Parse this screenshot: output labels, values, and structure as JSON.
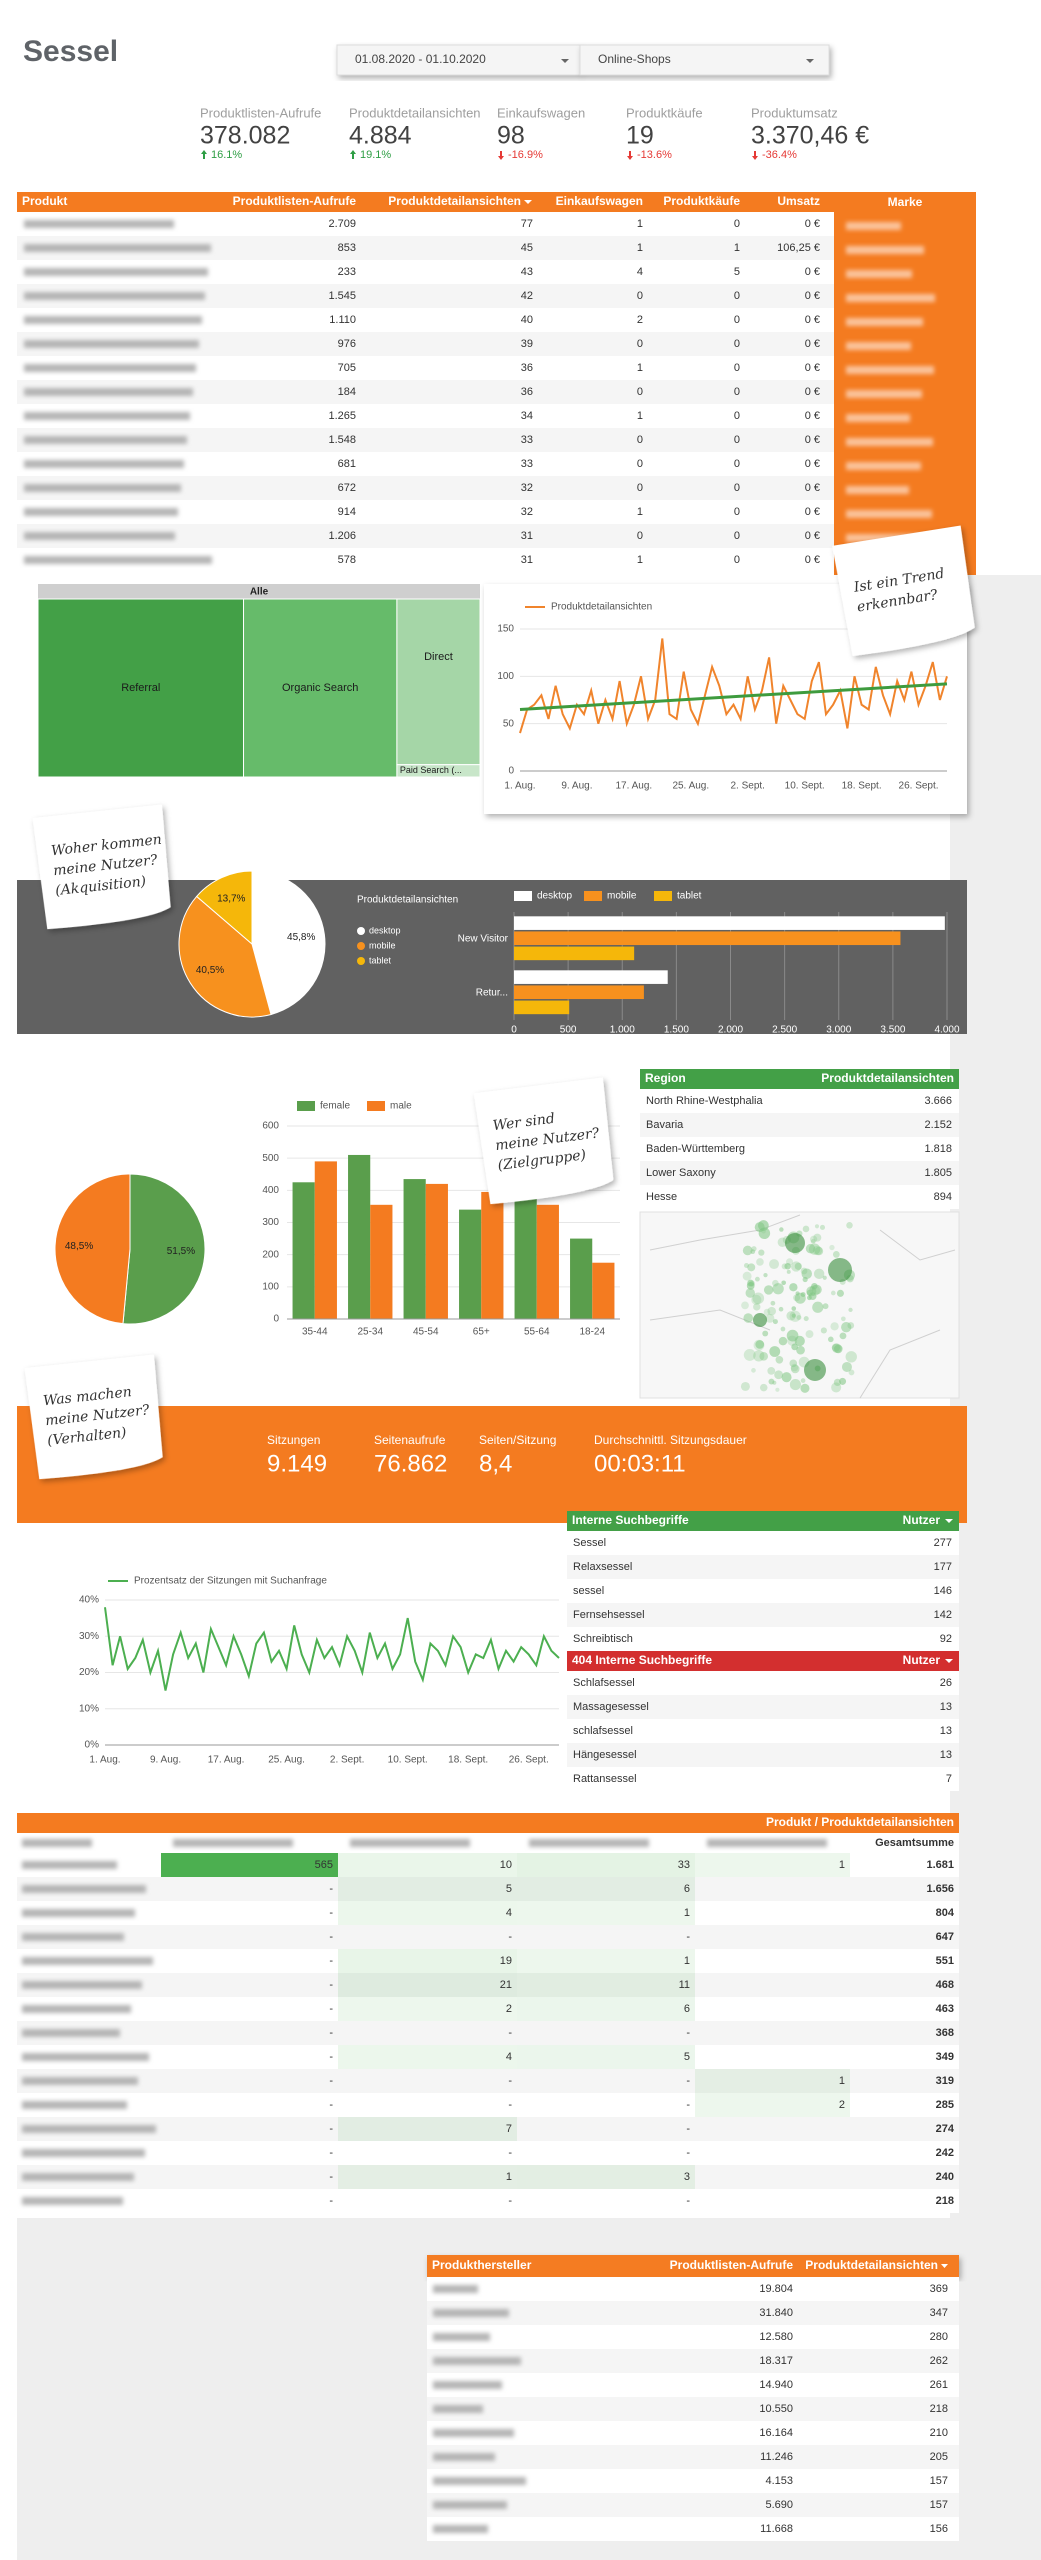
{
  "header": {
    "title": "Sessel",
    "date_range": "01.08.2020 - 01.10.2020",
    "filter": "Online-Shops"
  },
  "kpis": [
    {
      "label": "Produktlisten-Aufrufe",
      "value": "378.082",
      "change": "16.1%",
      "direction": "up"
    },
    {
      "label": "Produktdetailansichten",
      "value": "4.884",
      "change": "19.1%",
      "direction": "up"
    },
    {
      "label": "Einkaufswagen",
      "value": "98",
      "change": "-16.9%",
      "direction": "down"
    },
    {
      "label": "Produktkäufe",
      "value": "19",
      "change": "-13.6%",
      "direction": "down"
    },
    {
      "label": "Produktumsatz",
      "value": "3.370,46 €",
      "change": "-36.4%",
      "direction": "down"
    }
  ],
  "product_table": {
    "columns": [
      "Produkt",
      "Produktlisten-Aufrufe",
      "Produktdetailansichten",
      "Einkaufswagen",
      "Produktkäufe",
      "Umsatz"
    ],
    "sort_column": 2,
    "side_header": "Marke",
    "rows": [
      [
        "2.709",
        "77",
        "1",
        "0",
        "0 €"
      ],
      [
        "853",
        "45",
        "1",
        "1",
        "106,25 €"
      ],
      [
        "233",
        "43",
        "4",
        "5",
        "0 €"
      ],
      [
        "1.545",
        "42",
        "0",
        "0",
        "0 €"
      ],
      [
        "1.110",
        "40",
        "2",
        "0",
        "0 €"
      ],
      [
        "976",
        "39",
        "0",
        "0",
        "0 €"
      ],
      [
        "705",
        "36",
        "1",
        "0",
        "0 €"
      ],
      [
        "184",
        "36",
        "0",
        "0",
        "0 €"
      ],
      [
        "1.265",
        "34",
        "1",
        "0",
        "0 €"
      ],
      [
        "1.548",
        "33",
        "0",
        "0",
        "0 €"
      ],
      [
        "681",
        "33",
        "0",
        "0",
        "0 €"
      ],
      [
        "672",
        "32",
        "0",
        "0",
        "0 €"
      ],
      [
        "914",
        "32",
        "1",
        "0",
        "0 €"
      ],
      [
        "1.206",
        "31",
        "0",
        "0",
        "0 €"
      ],
      [
        "578",
        "31",
        "1",
        "0",
        "0 €"
      ]
    ]
  },
  "notes": [
    {
      "lines": [
        "Ist ein Trend",
        "erkennbar?"
      ]
    },
    {
      "lines": [
        "Woher kommen",
        "meine Nutzer?",
        "(Akquisition)"
      ]
    },
    {
      "lines": [
        "Wer sind",
        "meine Nutzer?",
        "(Zielgruppe)"
      ]
    },
    {
      "lines": [
        "Was machen",
        "meine Nutzer?",
        "(Verhalten)"
      ]
    }
  ],
  "chart_data": [
    {
      "type": "treemap",
      "title": "Alle",
      "categories": [
        "Referral",
        "Organic Search",
        "Direct",
        "Paid Search (..."
      ],
      "values": [
        46.5,
        34.7,
        17.5,
        1.3
      ],
      "colors": [
        "#43a047",
        "#66bb6a",
        "#a5d6a7",
        "#c8e6c9"
      ]
    },
    {
      "type": "line",
      "categories": [
        "1. Aug.",
        null,
        null,
        null,
        null,
        null,
        null,
        null,
        "9. Aug.",
        null,
        null,
        null,
        null,
        null,
        null,
        null,
        "17. Aug.",
        null,
        null,
        null,
        null,
        null,
        null,
        null,
        "25. Aug.",
        null,
        null,
        null,
        null,
        null,
        null,
        null,
        "2. Sept.",
        null,
        null,
        null,
        null,
        null,
        null,
        null,
        "10. Sept.",
        null,
        null,
        null,
        null,
        null,
        null,
        null,
        "18. Sept.",
        null,
        null,
        null,
        null,
        null,
        null,
        null,
        "26. Sept.",
        null,
        null,
        null,
        null
      ],
      "series": [
        {
          "name": "Produktdetailansichten",
          "color": "#f0842c",
          "values": [
            40,
            65,
            70,
            80,
            55,
            90,
            60,
            45,
            70,
            60,
            85,
            50,
            75,
            55,
            95,
            50,
            70,
            100,
            55,
            75,
            140,
            60,
            55,
            105,
            65,
            50,
            80,
            110,
            90,
            60,
            70,
            55,
            100,
            65,
            85,
            120,
            50,
            90,
            75,
            60,
            55,
            95,
            115,
            60,
            70,
            85,
            45,
            100,
            70,
            65,
            110,
            80,
            60,
            95,
            75,
            105,
            70,
            90,
            115,
            75,
            100
          ]
        }
      ],
      "trend": {
        "color": "#3e9b3e",
        "values": [
          65,
          92
        ]
      },
      "ylim": [
        0,
        150
      ],
      "yticks": [
        0,
        50,
        100,
        150
      ],
      "grid": true
    },
    {
      "type": "pie",
      "categories": [
        "desktop",
        "mobile",
        "tablet"
      ],
      "values": [
        45.8,
        40.5,
        13.7
      ],
      "value_labels": [
        "45,8%",
        "40,5%",
        "13,7%"
      ],
      "colors": [
        "#ffffff",
        "#f7911e",
        "#f5b70a"
      ],
      "legend": true,
      "legend_title": "Produktdetailansichten"
    },
    {
      "type": "bar",
      "orientation": "horizontal",
      "categories": [
        "New Visitor",
        "Retur..."
      ],
      "series": [
        {
          "name": "desktop",
          "color": "#ffffff",
          "values": [
            3980,
            1420
          ]
        },
        {
          "name": "mobile",
          "color": "#f7911e",
          "values": [
            3570,
            1200
          ]
        },
        {
          "name": "tablet",
          "color": "#f5b70a",
          "values": [
            1110,
            510
          ]
        }
      ],
      "xlim": [
        0,
        4000
      ],
      "xticks": [
        0,
        500,
        {
          "value": 1000,
          "label": "1.000"
        },
        {
          "value": 1500,
          "label": "1.500"
        },
        {
          "value": 2000,
          "label": "2.000"
        },
        {
          "value": 2500,
          "label": "2.500"
        },
        {
          "value": 3000,
          "label": "3.000"
        },
        {
          "value": 3500,
          "label": "3.500"
        },
        {
          "value": 4000,
          "label": "4.000"
        }
      ],
      "grid": true
    },
    {
      "type": "pie",
      "values": [
        51.5,
        48.5
      ],
      "value_labels": [
        "51,5%",
        "48,5%"
      ],
      "colors": [
        "#5a9e4c",
        "#f47b20"
      ],
      "legend": false
    },
    {
      "type": "bar",
      "orientation": "vertical",
      "categories": [
        "35-44",
        "25-34",
        "45-54",
        "65+",
        "55-64",
        "18-24"
      ],
      "series": [
        {
          "name": "female",
          "color": "#5a9e4c",
          "values": [
            425,
            510,
            435,
            340,
            395,
            250
          ]
        },
        {
          "name": "male",
          "color": "#f47b20",
          "values": [
            490,
            355,
            420,
            395,
            355,
            175
          ]
        }
      ],
      "ylim": [
        0,
        600
      ],
      "yticks": [
        0,
        100,
        200,
        300,
        400,
        500,
        600
      ],
      "grid": true
    },
    {
      "type": "line",
      "categories": [
        "1. Aug.",
        null,
        null,
        null,
        null,
        null,
        null,
        null,
        "9. Aug.",
        null,
        null,
        null,
        null,
        null,
        null,
        null,
        "17. Aug.",
        null,
        null,
        null,
        null,
        null,
        null,
        null,
        "25. Aug.",
        null,
        null,
        null,
        null,
        null,
        null,
        null,
        "2. Sept.",
        null,
        null,
        null,
        null,
        null,
        null,
        null,
        "10. Sept.",
        null,
        null,
        null,
        null,
        null,
        null,
        null,
        "18. Sept.",
        null,
        null,
        null,
        null,
        null,
        null,
        null,
        "26. Sept.",
        null,
        null,
        null,
        null
      ],
      "series": [
        {
          "name": "Prozentsatz der Sitzungen mit Suchanfrage",
          "color": "#4caf50",
          "values": [
            38,
            22,
            30,
            21,
            24,
            29,
            20,
            26,
            15,
            25,
            31,
            24,
            28,
            20,
            32,
            27,
            22,
            30,
            25,
            19,
            28,
            31,
            23,
            26,
            21,
            33,
            25,
            20,
            29,
            24,
            27,
            22,
            30,
            26,
            20,
            31,
            24,
            28,
            21,
            25,
            35,
            23,
            18,
            28,
            26,
            22,
            30,
            27,
            20,
            25,
            24,
            29,
            21,
            26,
            23,
            27,
            25,
            22,
            30,
            26,
            24
          ]
        }
      ],
      "ylim": [
        0,
        40
      ],
      "yticks": [
        {
          "value": 0,
          "label": "0%"
        },
        {
          "value": 10,
          "label": "10%"
        },
        {
          "value": 20,
          "label": "20%"
        },
        {
          "value": 30,
          "label": "30%"
        },
        {
          "value": 40,
          "label": "40%"
        }
      ],
      "grid": true
    }
  ],
  "region_table": {
    "columns": [
      "Region",
      "Produktdetailansichten"
    ],
    "rows": [
      [
        "North Rhine-Westphalia",
        "3.666"
      ],
      [
        "Bavaria",
        "2.152"
      ],
      [
        "Baden-Württemberg",
        "1.818"
      ],
      [
        "Lower Saxony",
        "1.805"
      ],
      [
        "Hesse",
        "894"
      ]
    ]
  },
  "session_kpis": [
    {
      "label": "Sitzungen",
      "value": "9.149"
    },
    {
      "label": "Seitenaufrufe",
      "value": "76.862"
    },
    {
      "label": "Seiten/Sitzung",
      "value": "8,4"
    },
    {
      "label": "Durchschnittl. Sitzungsdauer",
      "value": "00:03:11"
    }
  ],
  "search_tables": [
    {
      "columns": [
        "Interne Suchbegriffe",
        "Nutzer"
      ],
      "rows": [
        [
          "Sessel",
          "277"
        ],
        [
          "Relaxsessel",
          "177"
        ],
        [
          "sessel",
          "146"
        ],
        [
          "Fernsehsessel",
          "142"
        ],
        [
          "Schreibtisch",
          "92"
        ]
      ]
    },
    {
      "columns": [
        "404 Interne Suchbegriffe",
        "Nutzer"
      ],
      "rows": [
        [
          "Schlafsessel",
          "26"
        ],
        [
          "Massagesessel",
          "13"
        ],
        [
          "schlafsessel",
          "13"
        ],
        [
          "Hängesessel",
          "13"
        ],
        [
          "Rattansessel",
          "7"
        ]
      ]
    }
  ],
  "pivot_table": {
    "title": "Produkt / Produktdetailansichten",
    "total_header": "Gesamtsumme",
    "rows": [
      [
        "565",
        "10",
        "33",
        "1",
        "1.681"
      ],
      [
        "-",
        "5",
        "6",
        null,
        "1.656"
      ],
      [
        "-",
        "4",
        "1",
        null,
        "804"
      ],
      [
        "-",
        "-",
        "-",
        null,
        "647"
      ],
      [
        "-",
        "19",
        "1",
        null,
        "551"
      ],
      [
        "-",
        "21",
        "11",
        null,
        "468"
      ],
      [
        "-",
        "2",
        "6",
        null,
        "463"
      ],
      [
        "-",
        "-",
        "-",
        null,
        "368"
      ],
      [
        "-",
        "4",
        "5",
        null,
        "349"
      ],
      [
        "-",
        "-",
        "-",
        "1",
        "319"
      ],
      [
        "-",
        "-",
        "-",
        "2",
        "285"
      ],
      [
        "-",
        "7",
        "-",
        null,
        "274"
      ],
      [
        "-",
        "-",
        "-",
        null,
        "242"
      ],
      [
        "-",
        "1",
        "3",
        null,
        "240"
      ],
      [
        "-",
        "-",
        "-",
        null,
        "218"
      ]
    ]
  },
  "manufacturer_table": {
    "columns": [
      "Produkthersteller",
      "Produktlisten-Aufrufe",
      "Produktdetailansichten"
    ],
    "sort_column": 2,
    "rows": [
      [
        "19.804",
        "369"
      ],
      [
        "31.840",
        "347"
      ],
      [
        "12.580",
        "280"
      ],
      [
        "18.317",
        "262"
      ],
      [
        "14.940",
        "261"
      ],
      [
        "10.550",
        "218"
      ],
      [
        "16.164",
        "210"
      ],
      [
        "11.246",
        "205"
      ],
      [
        "4.153",
        "157"
      ],
      [
        "5.690",
        "157"
      ],
      [
        "11.668",
        "156"
      ]
    ]
  }
}
